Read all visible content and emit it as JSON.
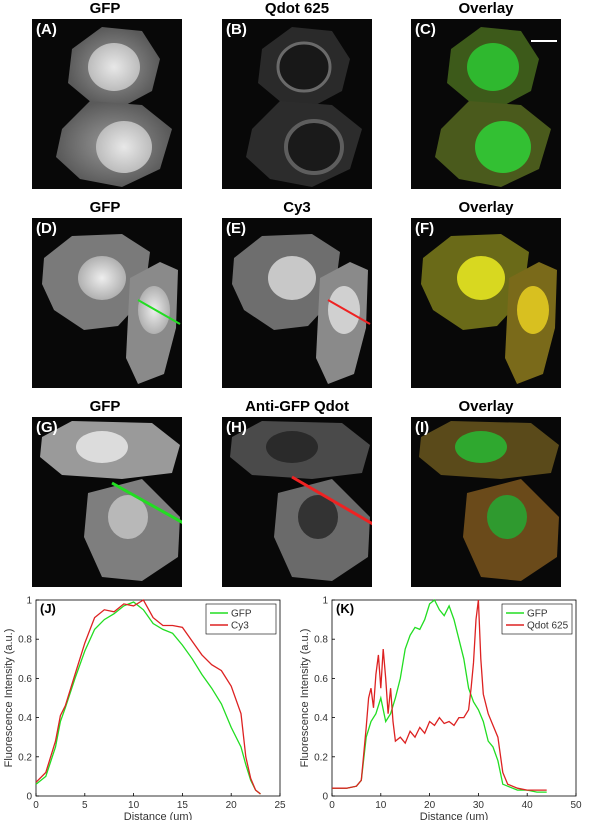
{
  "rows": [
    {
      "panels": [
        {
          "label": "(A)",
          "title": "GFP",
          "kind": "gfp"
        },
        {
          "label": "(B)",
          "title": "Qdot 625",
          "kind": "qdot"
        },
        {
          "label": "(C)",
          "title": "Overlay",
          "kind": "overlay_gr"
        }
      ]
    },
    {
      "panels": [
        {
          "label": "(D)",
          "title": "GFP",
          "kind": "gfp2",
          "line_color": "#22dd22"
        },
        {
          "label": "(E)",
          "title": "Cy3",
          "kind": "cy3",
          "line_color": "#ee2222"
        },
        {
          "label": "(F)",
          "title": "Overlay",
          "kind": "overlay_y"
        }
      ]
    },
    {
      "panels": [
        {
          "label": "(G)",
          "title": "GFP",
          "kind": "gfp3",
          "line_color": "#22dd22"
        },
        {
          "label": "(H)",
          "title": "Anti-GFP Qdot",
          "kind": "qdot3",
          "line_color": "#ee2222"
        },
        {
          "label": "(I)",
          "title": "Overlay",
          "kind": "overlay_gr2"
        }
      ]
    }
  ],
  "chart_data": [
    {
      "type": "line",
      "panel_label": "(J)",
      "xlabel": "Distance (um)",
      "ylabel": "Fluorescence Intensity (a.u.)",
      "xlim": [
        0,
        25
      ],
      "ylim": [
        0,
        1
      ],
      "xticks": [
        0,
        5,
        10,
        15,
        20,
        25
      ],
      "yticks": [
        0,
        0.2,
        0.4,
        0.6,
        0.8,
        1
      ],
      "ytick_labels": [
        "0",
        "0.2",
        "0.4",
        "0.6",
        "0.8",
        "1"
      ],
      "legend_position": "top-right",
      "series": [
        {
          "name": "GFP",
          "color": "#22dd22",
          "x": [
            0,
            1,
            2,
            2.5,
            3,
            4,
            5,
            6,
            7,
            8,
            9,
            10,
            11,
            12,
            13,
            14,
            15,
            16,
            17,
            18,
            19,
            20,
            21,
            21.5,
            22,
            22.5,
            23
          ],
          "y": [
            0.06,
            0.1,
            0.25,
            0.38,
            0.45,
            0.6,
            0.74,
            0.85,
            0.9,
            0.93,
            0.97,
            0.99,
            0.95,
            0.88,
            0.85,
            0.83,
            0.77,
            0.7,
            0.62,
            0.55,
            0.47,
            0.35,
            0.25,
            0.16,
            0.08,
            0.03,
            0.01
          ]
        },
        {
          "name": "Cy3",
          "color": "#dd2222",
          "x": [
            0,
            1,
            2,
            2.5,
            3,
            4,
            5,
            6,
            7,
            8,
            9,
            10,
            11,
            12,
            13,
            14,
            15,
            16,
            17,
            18,
            19,
            20,
            21,
            21.5,
            22,
            22.5,
            23
          ],
          "y": [
            0.07,
            0.12,
            0.28,
            0.41,
            0.46,
            0.62,
            0.78,
            0.91,
            0.95,
            0.94,
            0.98,
            0.97,
            1.0,
            0.91,
            0.87,
            0.87,
            0.86,
            0.79,
            0.72,
            0.67,
            0.64,
            0.56,
            0.42,
            0.2,
            0.09,
            0.03,
            0.01
          ]
        }
      ]
    },
    {
      "type": "line",
      "panel_label": "(K)",
      "xlabel": "Distance (um)",
      "ylabel": "Fluorescence Intensity (a.u.)",
      "xlim": [
        0,
        50
      ],
      "ylim": [
        0,
        1
      ],
      "xticks": [
        0,
        10,
        20,
        30,
        40,
        50
      ],
      "yticks": [
        0,
        0.2,
        0.4,
        0.6,
        0.8,
        1
      ],
      "ytick_labels": [
        "0",
        "0.2",
        "0.4",
        "0.6",
        "0.8",
        "1"
      ],
      "legend_position": "top-right",
      "series": [
        {
          "name": "GFP",
          "color": "#22dd22",
          "x": [
            0,
            3,
            5,
            6,
            7,
            8,
            9,
            10,
            11,
            12,
            13,
            14,
            15,
            16,
            17,
            18,
            19,
            20,
            21,
            22,
            23,
            24,
            25,
            26,
            27,
            28,
            29,
            30,
            31,
            32,
            33,
            34,
            35,
            36,
            38,
            40,
            42,
            44
          ],
          "y": [
            0.04,
            0.04,
            0.05,
            0.08,
            0.3,
            0.38,
            0.42,
            0.5,
            0.38,
            0.42,
            0.5,
            0.6,
            0.75,
            0.82,
            0.86,
            0.85,
            0.9,
            0.98,
            1.0,
            0.95,
            0.92,
            0.97,
            0.9,
            0.8,
            0.7,
            0.55,
            0.48,
            0.44,
            0.38,
            0.28,
            0.25,
            0.18,
            0.06,
            0.05,
            0.03,
            0.03,
            0.02,
            0.02
          ]
        },
        {
          "name": "Qdot 625",
          "color": "#dd2222",
          "x": [
            0,
            3,
            5,
            6,
            7,
            7.5,
            8,
            8.5,
            9,
            9.5,
            10,
            10.5,
            11,
            11.5,
            12,
            12.5,
            13,
            14,
            15,
            16,
            17,
            18,
            19,
            20,
            21,
            22,
            23,
            24,
            25,
            26,
            27,
            28,
            28.5,
            29,
            29.5,
            30,
            30.5,
            31,
            32,
            33,
            34,
            35,
            36,
            38,
            40,
            42,
            44
          ],
          "y": [
            0.04,
            0.04,
            0.05,
            0.08,
            0.35,
            0.5,
            0.55,
            0.45,
            0.62,
            0.72,
            0.55,
            0.75,
            0.6,
            0.42,
            0.55,
            0.38,
            0.28,
            0.3,
            0.27,
            0.33,
            0.3,
            0.35,
            0.32,
            0.38,
            0.36,
            0.4,
            0.37,
            0.38,
            0.36,
            0.4,
            0.4,
            0.44,
            0.55,
            0.68,
            0.9,
            1.0,
            0.7,
            0.52,
            0.42,
            0.36,
            0.3,
            0.12,
            0.06,
            0.04,
            0.03,
            0.03,
            0.03
          ]
        }
      ]
    }
  ]
}
